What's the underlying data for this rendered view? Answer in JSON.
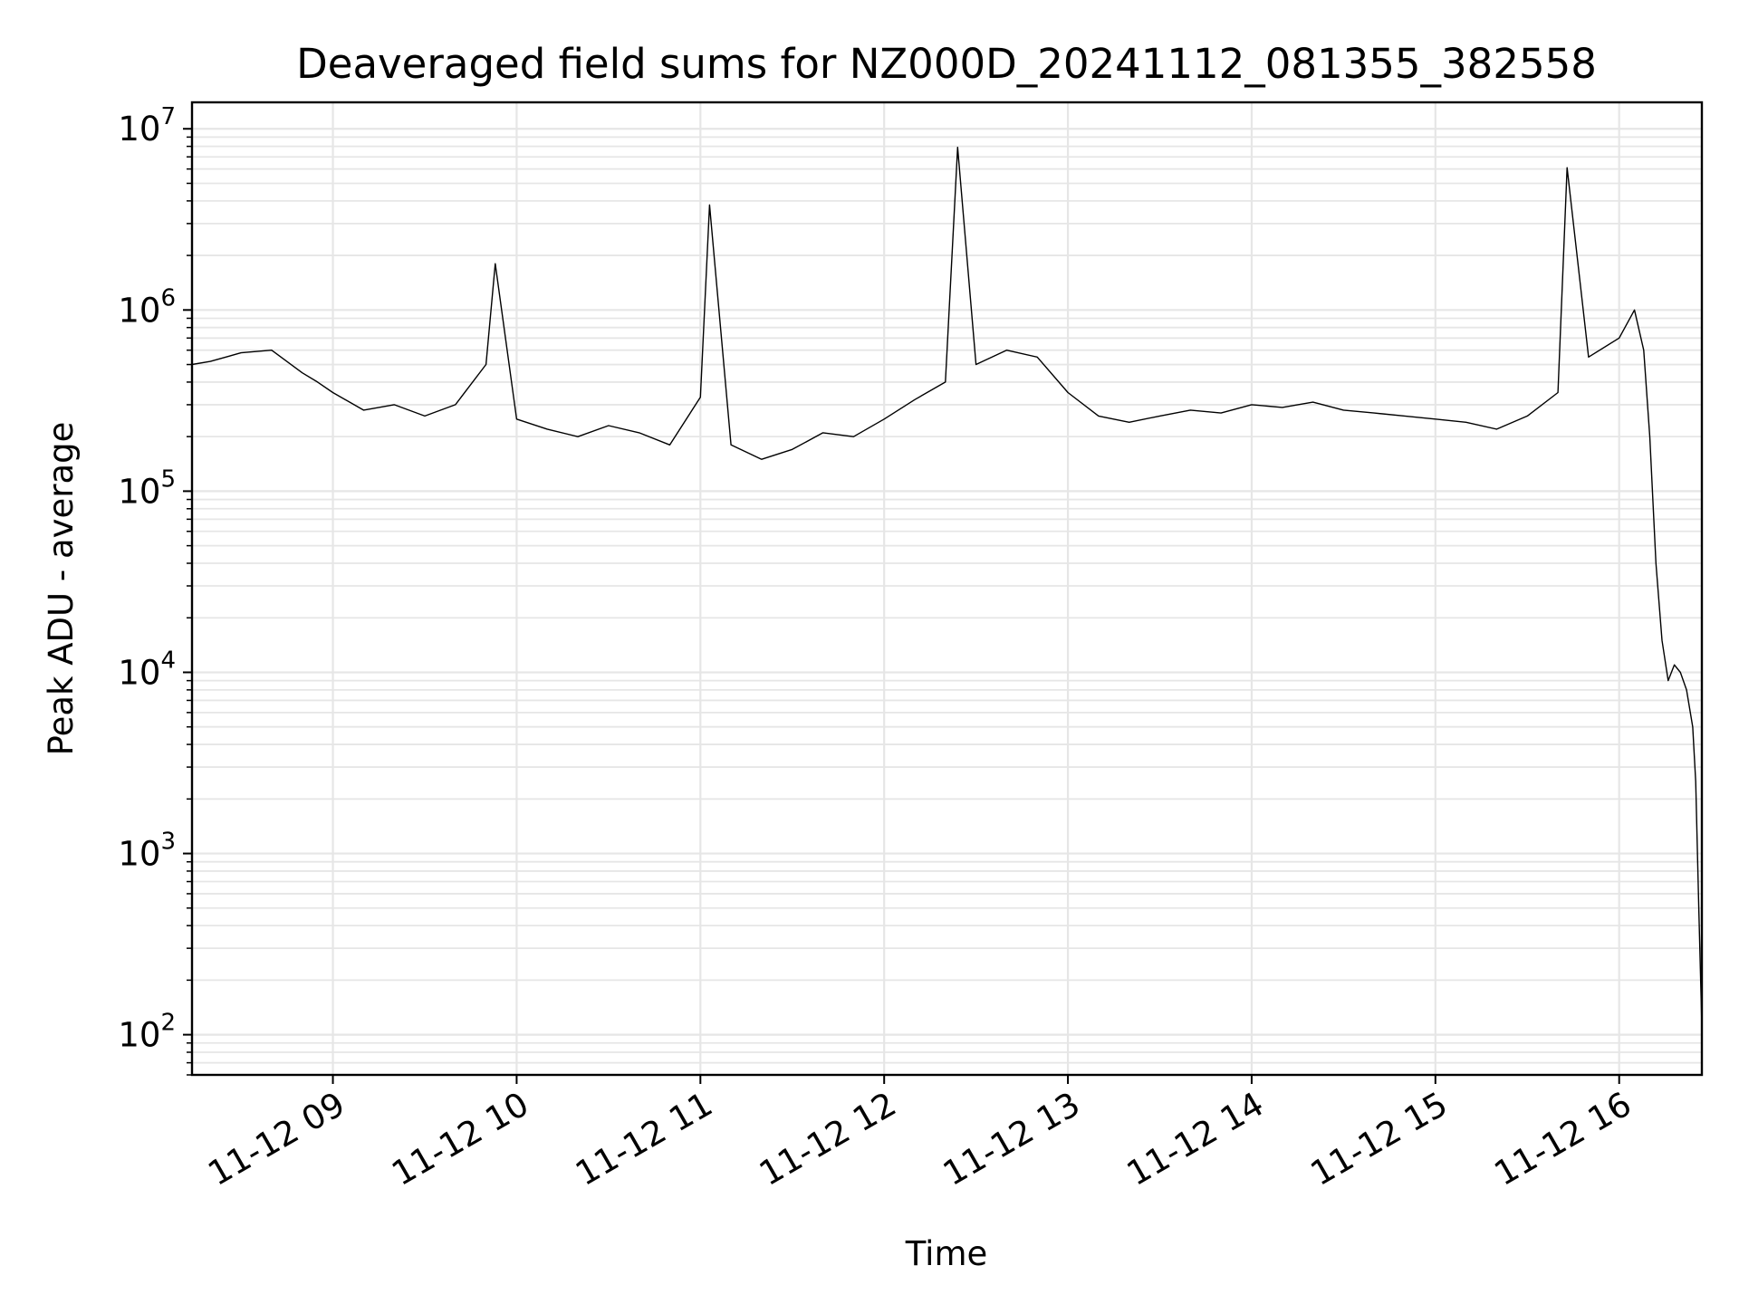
{
  "chart_data": {
    "type": "line",
    "title": "Deaveraged field sums for NZ000D_20241112_081355_382558",
    "xlabel": "Time",
    "ylabel": "Peak ADU - average",
    "yscale": "log",
    "ylim": [
      60,
      14000000
    ],
    "xlim": [
      "2024-11-12 08:14",
      "2024-11-12 16:27"
    ],
    "grid": true,
    "line_color": "#000000",
    "grid_color": "#e6e6e6",
    "y_ticks": [
      {
        "base": "10",
        "exp": "2",
        "value": 100
      },
      {
        "base": "10",
        "exp": "3",
        "value": 1000
      },
      {
        "base": "10",
        "exp": "4",
        "value": 10000
      },
      {
        "base": "10",
        "exp": "5",
        "value": 100000
      },
      {
        "base": "10",
        "exp": "6",
        "value": 1000000
      },
      {
        "base": "10",
        "exp": "7",
        "value": 10000000
      }
    ],
    "x_ticks": [
      {
        "label": "11-12 09",
        "value": "2024-11-12 09:00"
      },
      {
        "label": "11-12 10",
        "value": "2024-11-12 10:00"
      },
      {
        "label": "11-12 11",
        "value": "2024-11-12 11:00"
      },
      {
        "label": "11-12 12",
        "value": "2024-11-12 12:00"
      },
      {
        "label": "11-12 13",
        "value": "2024-11-12 13:00"
      },
      {
        "label": "11-12 14",
        "value": "2024-11-12 14:00"
      },
      {
        "label": "11-12 15",
        "value": "2024-11-12 15:00"
      },
      {
        "label": "11-12 16",
        "value": "2024-11-12 16:00"
      }
    ],
    "series": [
      {
        "x": [
          "2024-11-12 08:14",
          "2024-11-12 08:20",
          "2024-11-12 08:30",
          "2024-11-12 08:40",
          "2024-11-12 08:50",
          "2024-11-12 08:55",
          "2024-11-12 09:00",
          "2024-11-12 09:10",
          "2024-11-12 09:20",
          "2024-11-12 09:30",
          "2024-11-12 09:40",
          "2024-11-12 09:50",
          "2024-11-12 09:53",
          "2024-11-12 10:00",
          "2024-11-12 10:10",
          "2024-11-12 10:20",
          "2024-11-12 10:30",
          "2024-11-12 10:40",
          "2024-11-12 10:50",
          "2024-11-12 11:00",
          "2024-11-12 11:03",
          "2024-11-12 11:10",
          "2024-11-12 11:20",
          "2024-11-12 11:30",
          "2024-11-12 11:40",
          "2024-11-12 11:50",
          "2024-11-12 12:00",
          "2024-11-12 12:10",
          "2024-11-12 12:20",
          "2024-11-12 12:24",
          "2024-11-12 12:30",
          "2024-11-12 12:40",
          "2024-11-12 12:50",
          "2024-11-12 13:00",
          "2024-11-12 13:10",
          "2024-11-12 13:20",
          "2024-11-12 13:30",
          "2024-11-12 13:40",
          "2024-11-12 13:50",
          "2024-11-12 14:00",
          "2024-11-12 14:10",
          "2024-11-12 14:20",
          "2024-11-12 14:30",
          "2024-11-12 14:40",
          "2024-11-12 14:50",
          "2024-11-12 15:00",
          "2024-11-12 15:10",
          "2024-11-12 15:20",
          "2024-11-12 15:30",
          "2024-11-12 15:40",
          "2024-11-12 15:43",
          "2024-11-12 15:50",
          "2024-11-12 16:00",
          "2024-11-12 16:05",
          "2024-11-12 16:08",
          "2024-11-12 16:10",
          "2024-11-12 16:12",
          "2024-11-12 16:14",
          "2024-11-12 16:16",
          "2024-11-12 16:18",
          "2024-11-12 16:20",
          "2024-11-12 16:22",
          "2024-11-12 16:24",
          "2024-11-12 16:25",
          "2024-11-12 16:26",
          "2024-11-12 16:27"
        ],
        "y": [
          500000,
          520000,
          580000,
          600000,
          450000,
          400000,
          350000,
          280000,
          300000,
          260000,
          300000,
          500000,
          1800000,
          250000,
          220000,
          200000,
          230000,
          210000,
          180000,
          330000,
          3800000,
          180000,
          150000,
          170000,
          210000,
          200000,
          250000,
          320000,
          400000,
          7900000,
          500000,
          600000,
          550000,
          350000,
          260000,
          240000,
          260000,
          280000,
          270000,
          300000,
          290000,
          310000,
          280000,
          270000,
          260000,
          250000,
          240000,
          220000,
          260000,
          350000,
          6100000,
          550000,
          700000,
          1000000,
          600000,
          200000,
          40000,
          15000,
          9000,
          11000,
          10000,
          8000,
          5000,
          2500,
          500,
          110
        ]
      }
    ]
  }
}
